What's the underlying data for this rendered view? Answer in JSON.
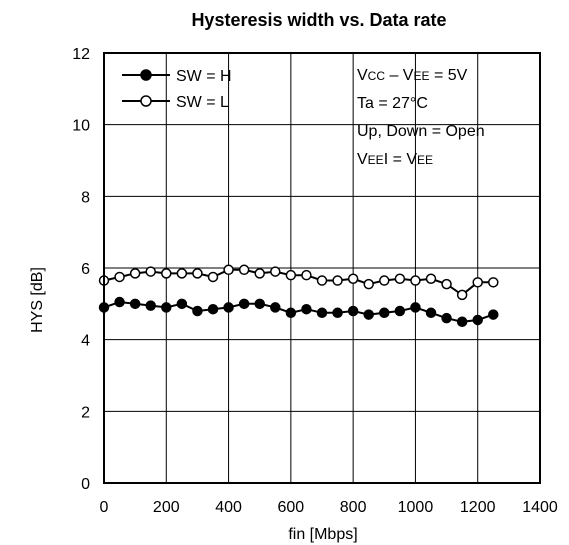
{
  "chart_data": {
    "type": "line",
    "title": "Hysteresis width vs. Data rate",
    "xlabel": "fin [Mbps]",
    "ylabel": "HYS [dB]",
    "xlim": [
      0,
      1400
    ],
    "ylim": [
      0,
      12
    ],
    "xticks": [
      0,
      200,
      400,
      600,
      800,
      1000,
      1200,
      1400
    ],
    "yticks": [
      0,
      2,
      4,
      6,
      8,
      10,
      12
    ],
    "grid": true,
    "legend_position": "top-left",
    "annotations": {
      "vcc": {
        "main1": "V",
        "sub1": "CC",
        "dash": " – V",
        "sub2": "EE",
        "rest": " = 5V"
      },
      "ta": "Ta = 27°C",
      "updown": "Up, Down = Open",
      "veei": {
        "main1": "V",
        "sub1": "EE",
        "mid": "I = V",
        "sub2": "EE"
      }
    },
    "series": [
      {
        "name": "SW = H",
        "marker": "filled-circle",
        "x": [
          0,
          50,
          100,
          150,
          200,
          250,
          300,
          350,
          400,
          450,
          500,
          550,
          600,
          650,
          700,
          750,
          800,
          850,
          900,
          950,
          1000,
          1050,
          1100,
          1150,
          1200,
          1250
        ],
        "y": [
          4.9,
          5.05,
          5.0,
          4.95,
          4.9,
          5.0,
          4.8,
          4.85,
          4.9,
          5.0,
          5.0,
          4.9,
          4.75,
          4.85,
          4.75,
          4.75,
          4.8,
          4.7,
          4.75,
          4.8,
          4.9,
          4.75,
          4.6,
          4.5,
          4.55,
          4.7
        ]
      },
      {
        "name": "SW = L",
        "marker": "open-circle",
        "x": [
          0,
          50,
          100,
          150,
          200,
          250,
          300,
          350,
          400,
          450,
          500,
          550,
          600,
          650,
          700,
          750,
          800,
          850,
          900,
          950,
          1000,
          1050,
          1100,
          1150,
          1200,
          1250
        ],
        "y": [
          5.65,
          5.75,
          5.85,
          5.9,
          5.85,
          5.85,
          5.85,
          5.75,
          5.95,
          5.95,
          5.85,
          5.9,
          5.8,
          5.8,
          5.65,
          5.65,
          5.7,
          5.55,
          5.65,
          5.7,
          5.65,
          5.7,
          5.55,
          5.25,
          5.6,
          5.6
        ]
      }
    ]
  }
}
